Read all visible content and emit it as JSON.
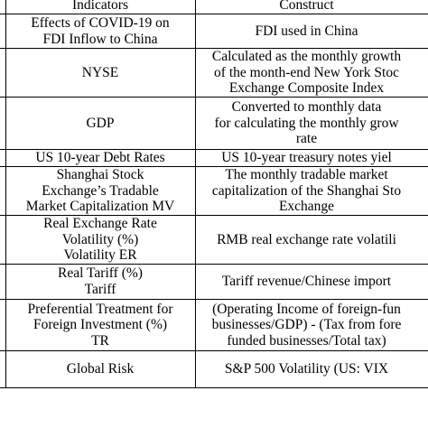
{
  "table": {
    "headers": {
      "indicators": "Indicators",
      "construct": "Construct"
    },
    "rows": [
      {
        "indicator": [
          "Effects of COVID-19 on",
          "FDI Inflow to China"
        ],
        "construct": [
          "FDI used in China"
        ]
      },
      {
        "indicator": [
          "NYSE"
        ],
        "construct": [
          "Calculated as the monthly growth",
          "of the month-end New York Stoc",
          "Exchange Composite Index"
        ]
      },
      {
        "indicator": [
          "GDP"
        ],
        "construct": [
          "Converted to monthly data",
          "for calculating the monthly grow",
          "rate"
        ]
      },
      {
        "indicator": [
          "US 10-year Debt Rates"
        ],
        "construct": [
          "US 10-year treasury notes yiel"
        ]
      },
      {
        "indicator": [
          "Shanghai Stock",
          "Exchange’s Tradable",
          "Market Capitalization MV"
        ],
        "construct": [
          "The monthly tradable market",
          "capitalization of the Shanghai Sto",
          "Exchange"
        ]
      },
      {
        "indicator": [
          "Real Exchange Rate",
          "Volatility (%)",
          "Volatility ER"
        ],
        "construct": [
          "RMB real exchange rate volatili"
        ]
      },
      {
        "indicator": [
          "Real Tariff (%)",
          "Tariff"
        ],
        "construct": [
          "Tariff revenue/Chinese import"
        ]
      },
      {
        "indicator": [
          "Preferential Treatment for",
          "Foreign Investment (%)",
          "TR"
        ],
        "construct": [
          "(Operating Income of foreign-fun",
          "businesses/GDP) - (Tax from fore",
          "funded businesses/Total tax)"
        ]
      },
      {
        "indicator": [
          "Global Risk"
        ],
        "construct": [
          "S&P 500 Volatility (US: VIX"
        ]
      }
    ]
  }
}
